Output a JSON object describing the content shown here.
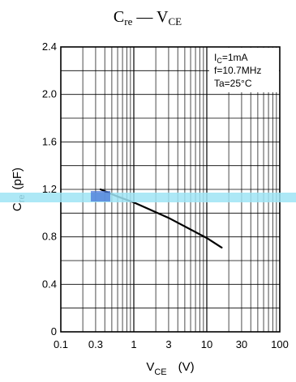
{
  "chart_data": {
    "type": "line",
    "title": {
      "main": "C",
      "main_sub": "re",
      "dash": " — ",
      "second": "V",
      "second_sub": "CE"
    },
    "xlabel": {
      "main": "V",
      "sub": "CE",
      "unit": "(V)"
    },
    "ylabel": {
      "main": "C",
      "sub": "re",
      "unit": "(pF)"
    },
    "x_scale": "log",
    "xlim": [
      0.1,
      100
    ],
    "ylim": [
      0,
      2.4
    ],
    "x_ticks": [
      0.1,
      0.3,
      1,
      3,
      10,
      30,
      100
    ],
    "x_tick_labels": [
      "0.1",
      "0.3",
      "1",
      "3",
      "10",
      "30",
      "100"
    ],
    "y_ticks": [
      0,
      0.4,
      0.8,
      1.2,
      1.6,
      2.0,
      2.4
    ],
    "y_tick_labels": [
      "0",
      "0.4",
      "0.8",
      "1.2",
      "1.6",
      "2.0",
      "2.4"
    ],
    "grid": true,
    "series": [
      {
        "values": [
          [
            0.35,
            1.2
          ],
          [
            0.6,
            1.14
          ],
          [
            1,
            1.09
          ],
          [
            3,
            0.96
          ],
          [
            10,
            0.79
          ],
          [
            16,
            0.71
          ]
        ]
      }
    ],
    "annotations": [
      {
        "main": "I",
        "sub": "C",
        "rest": "=1mA"
      },
      {
        "main": "f=10.7MHz"
      },
      {
        "main": "Ta=25°C"
      }
    ],
    "colors": {
      "line": "#000000",
      "grid": "#000000",
      "highlight": "#9fe4f4"
    }
  }
}
